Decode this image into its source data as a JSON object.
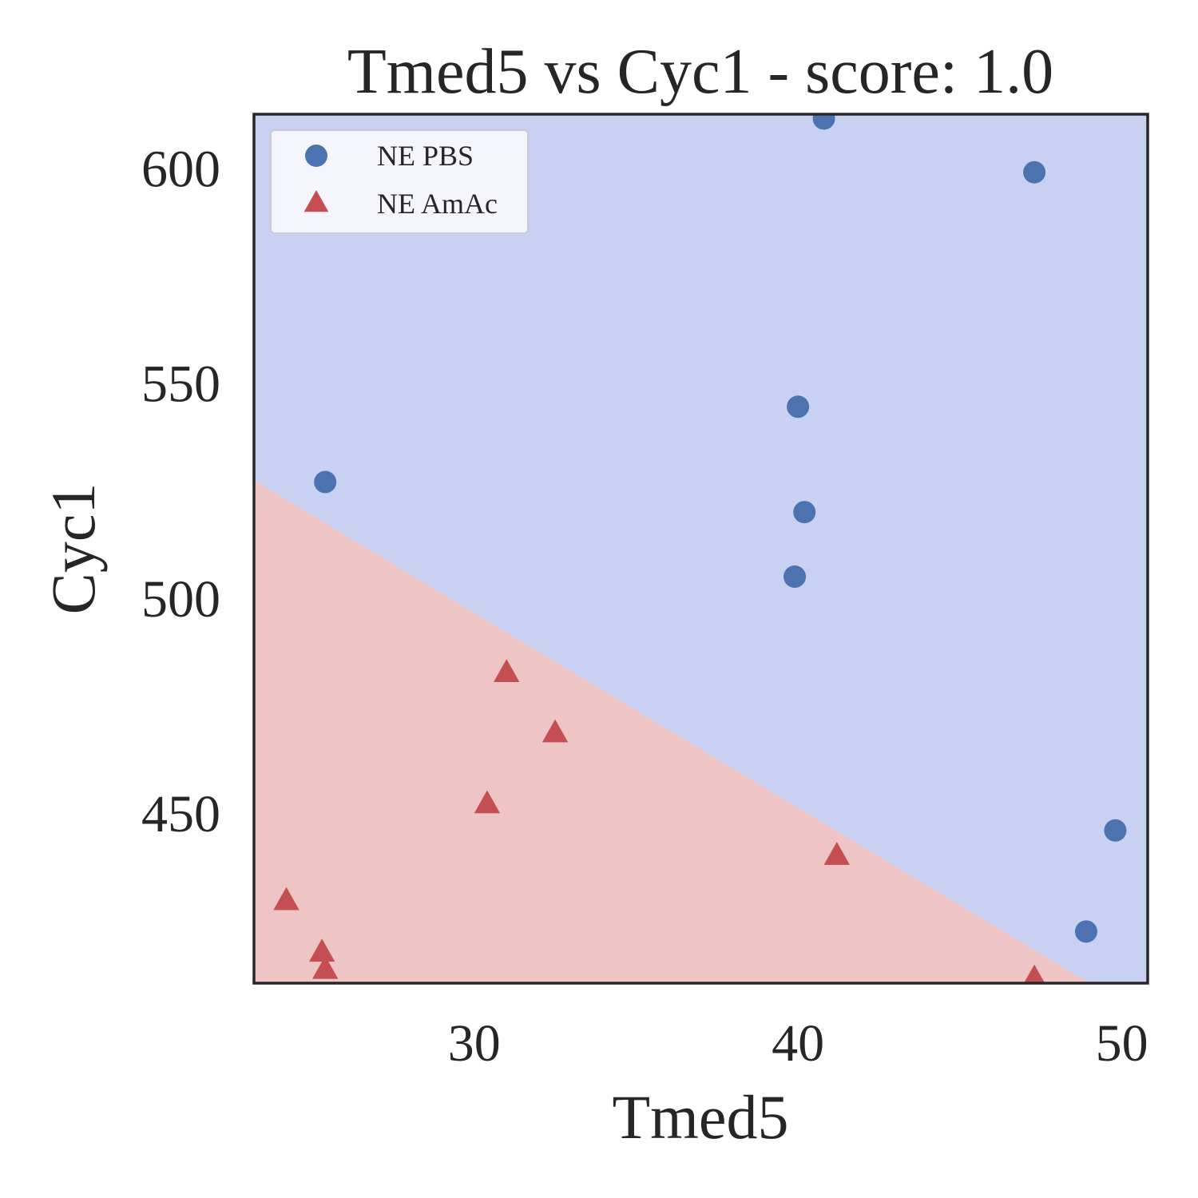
{
  "chart_data": {
    "type": "scatter",
    "title": "Tmed5 vs Cyc1 - score: 1.0",
    "xlabel": "Tmed5",
    "ylabel": "Cyc1",
    "xlim": [
      23.2,
      50.8
    ],
    "ylim": [
      410.5,
      612.5
    ],
    "xticks": [
      30,
      40,
      50
    ],
    "yticks": [
      450,
      500,
      550,
      600
    ],
    "grid": false,
    "legend_position": "top-left",
    "decision_boundary": {
      "points": [
        [
          23.2,
          527.4
        ],
        [
          49.0,
          410.5
        ]
      ],
      "region_above": {
        "label": "NE PBS",
        "color": "#c9d1f2"
      },
      "region_below": {
        "label": "NE AmAc",
        "color": "#efc4c4"
      }
    },
    "series": [
      {
        "name": "NE PBS",
        "marker": "circle",
        "color": "#4c72b0",
        "points": [
          [
            25.4,
            527.0
          ],
          [
            40.8,
            611.5
          ],
          [
            47.3,
            599.0
          ],
          [
            40.0,
            544.5
          ],
          [
            40.2,
            520.0
          ],
          [
            39.9,
            505.0
          ],
          [
            49.8,
            446.0
          ],
          [
            48.9,
            422.5
          ]
        ]
      },
      {
        "name": "NE AmAc",
        "marker": "triangle",
        "color": "#c44e52",
        "points": [
          [
            31.0,
            482.5
          ],
          [
            32.5,
            468.5
          ],
          [
            30.4,
            452.0
          ],
          [
            41.2,
            440.0
          ],
          [
            24.2,
            429.5
          ],
          [
            25.3,
            417.5
          ],
          [
            25.4,
            413.5
          ],
          [
            47.3,
            411.5
          ]
        ]
      }
    ]
  }
}
